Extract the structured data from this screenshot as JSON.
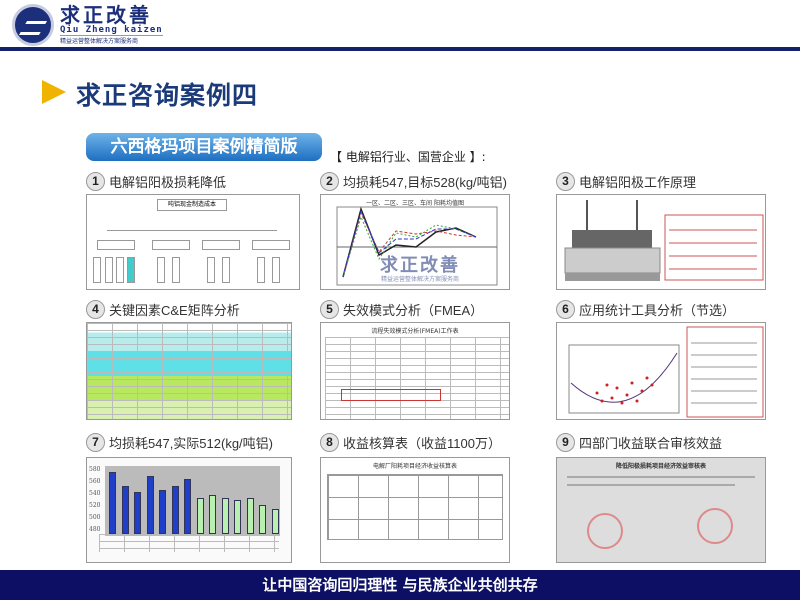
{
  "header": {
    "logo_cn": "求正改善",
    "logo_pinyin": "Qiu Zheng kaizen",
    "logo_sub": "精益运营整体解决方案服务商"
  },
  "slide": {
    "title": "求正咨询案例四",
    "badge": "六西格玛项目案例精简版",
    "industry": "【 电解铝行业、国营企业 】:"
  },
  "cards": [
    {
      "num": "1",
      "title": "电解铝阳极损耗降低",
      "thumb_title": "吨铝现金制造成本"
    },
    {
      "num": "2",
      "title": "均损耗547,目标528(kg/吨铝)",
      "thumb_title": "一区、二区、三区、车间 阳耗均值图"
    },
    {
      "num": "3",
      "title": "电解铝阳极工作原理"
    },
    {
      "num": "4",
      "title": "关键因素C&E矩阵分析"
    },
    {
      "num": "5",
      "title": "失效模式分析（FMEA）",
      "thumb_title": "流程失效模式分析(FMEA)工作表"
    },
    {
      "num": "6",
      "title": "应用统计工具分析（节选）"
    },
    {
      "num": "7",
      "title": "均损耗547,实际512(kg/吨铝)",
      "axis": [
        "580",
        "560",
        "540",
        "520",
        "500",
        "480"
      ]
    },
    {
      "num": "8",
      "title": "收益核算表（收益1100万）",
      "thumb_title": "电解厂阳耗项目经济收益核算表"
    },
    {
      "num": "9",
      "title": "四部门收益联合审核效益",
      "thumb_title": "降低阳极损耗项目经济效益审核表"
    }
  ],
  "watermark": {
    "cn": "求正改善",
    "sub": "精益运营整体解决方案服务商"
  },
  "footer": {
    "slogan": "让中国咨询回归理性  与民族企业共创共存"
  },
  "colors": {
    "navy": "#0c0f63",
    "accent": "#f0b400",
    "badge": "#1e6fc2",
    "bars_before": "#1f3fc8",
    "bars_after": "#b8f0b0"
  },
  "bars7": {
    "before": [
      568,
      548,
      540,
      563,
      543,
      548,
      558
    ],
    "after": [
      532,
      536,
      532,
      529,
      532,
      521,
      516
    ]
  }
}
